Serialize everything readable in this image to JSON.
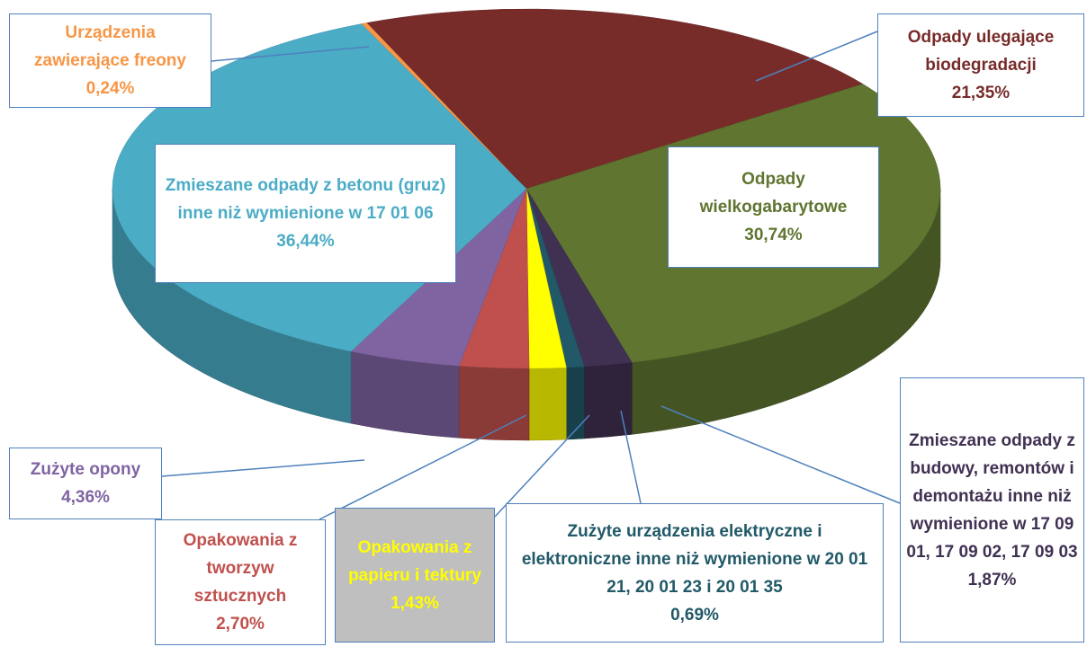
{
  "chart_data": {
    "type": "pie3d",
    "categories": [
      "Urządzenia zawierające freony",
      "Odpady ulegające biodegradacji",
      "Odpady wielkogabarytowe",
      "Zmieszane odpady z budowy, remontów i demontażu inne niż wymienione w 17 09 01, 17 09 02, 17 09 03",
      "Zużyte urządzenia elektryczne i elektroniczne inne niż wymienione w 20 01 21, 20 01 23 i 20 01 35",
      "Opakowania z papieru i tektury",
      "Opakowania z tworzyw sztucznych",
      "Zużyte opony",
      "Zmieszane odpady z betonu (gruz) inne niż wymienione w 17 01 06"
    ],
    "values": [
      0.24,
      21.35,
      30.74,
      1.87,
      0.69,
      1.43,
      2.7,
      4.36,
      36.44
    ],
    "value_labels": [
      "0,24%",
      "21,35%",
      "30,74%",
      "1,87%",
      "0,69%",
      "1,43%",
      "2,70%",
      "4,36%",
      "36,44%"
    ],
    "colors": [
      "#f79646",
      "#772c2a",
      "#5f7530",
      "#403152",
      "#215968",
      "#ffff00",
      "#c0504d",
      "#8064a2",
      "#4bacc6"
    ]
  }
}
